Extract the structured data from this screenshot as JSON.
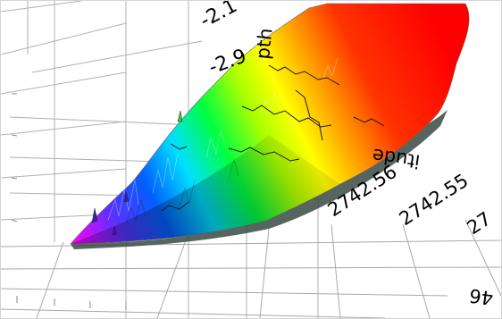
{
  "chart_data": {
    "type": "surface",
    "title": "",
    "axes": {
      "depth": {
        "label": "Depth",
        "label_visible_fragment": "pth",
        "ticks": [
          "-2.1",
          "-2.9"
        ]
      },
      "latitude": {
        "label": "Latitude",
        "label_visible_fragment": "itude",
        "ticks": [
          "2742.56",
          "2742.55",
          "27"
        ]
      },
      "longitude": {
        "label": "",
        "ticks": [
          "46"
        ]
      }
    },
    "colormap": [
      "#ff00ff",
      "#0000ff",
      "#00ffff",
      "#00ff00",
      "#ffff00",
      "#ff8000",
      "#ff0000"
    ],
    "colormap_meaning": "depth (low = magenta/blue, high = red)",
    "grid": true,
    "contour_lines": true
  }
}
